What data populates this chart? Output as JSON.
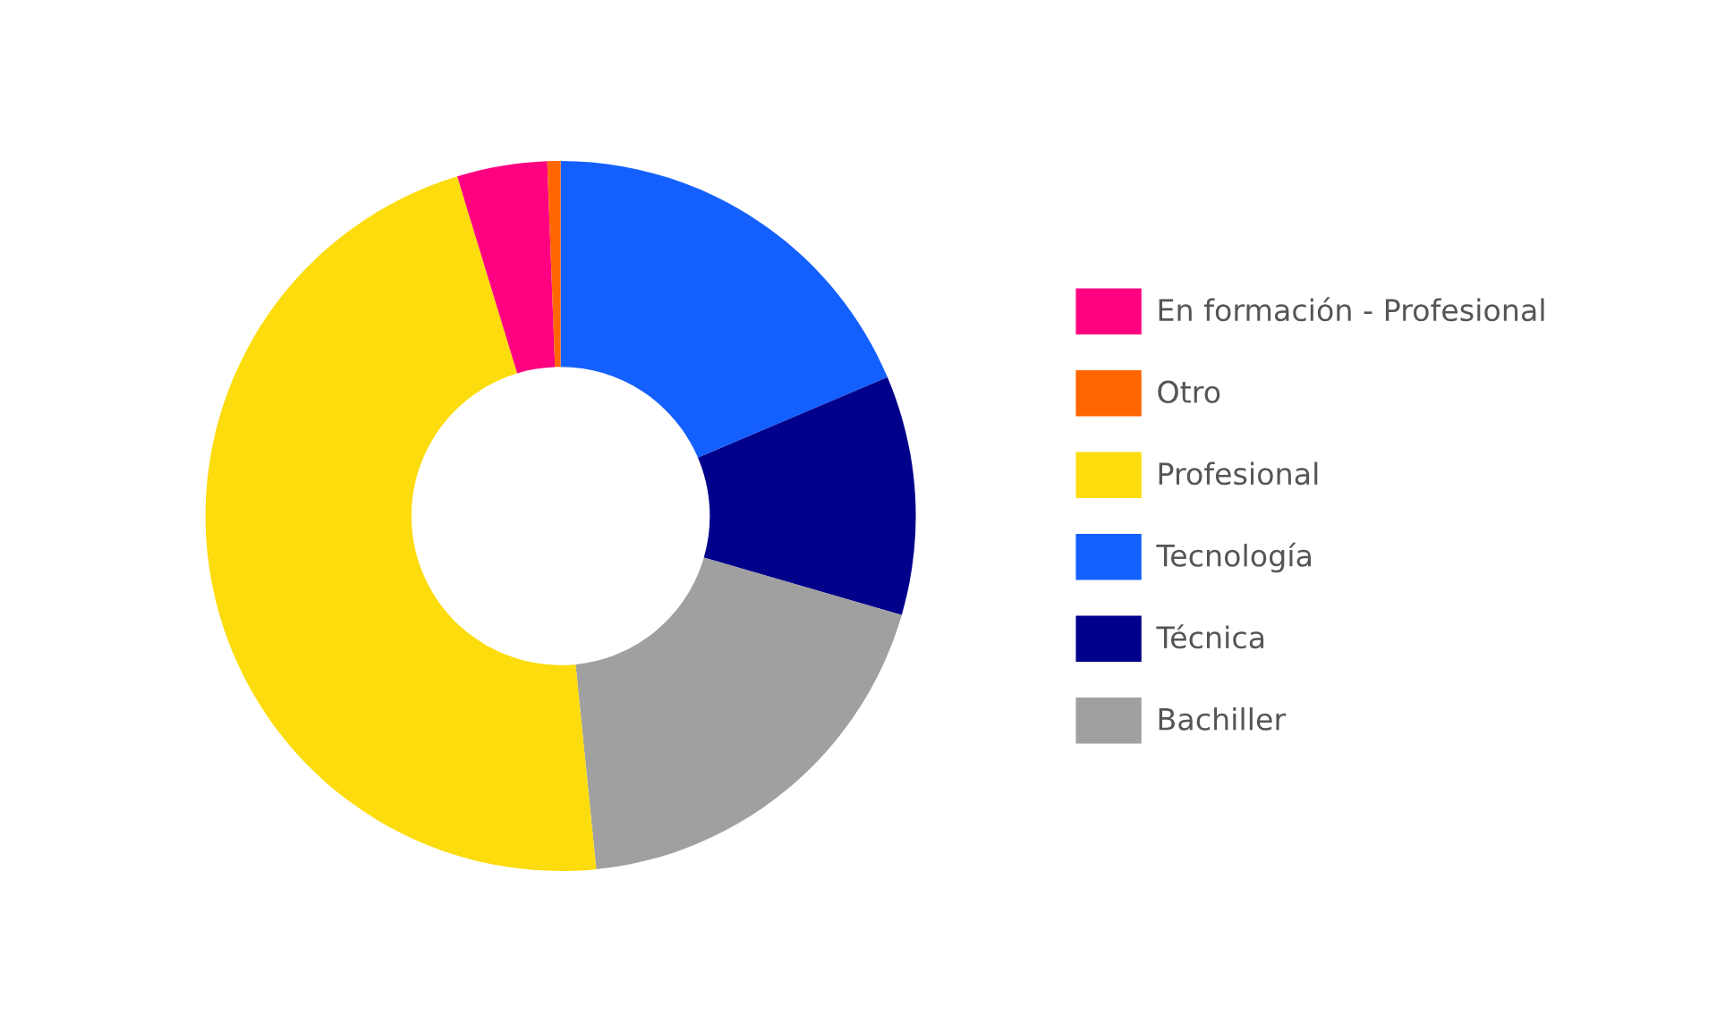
{
  "chart_data": {
    "type": "donut",
    "categories": [
      "En formación - Profesional",
      "Otro",
      "Profesional",
      "Tecnología",
      "Técnica",
      "Bachiller"
    ],
    "values": [
      4.1,
      0.6,
      46.9,
      18.6,
      10.9,
      18.9
    ],
    "colors": [
      "#ff0080",
      "#ff6600",
      "#fcdc0c",
      "#1460ff",
      "#00008b",
      "#a0a0a0"
    ],
    "legend": "right"
  }
}
